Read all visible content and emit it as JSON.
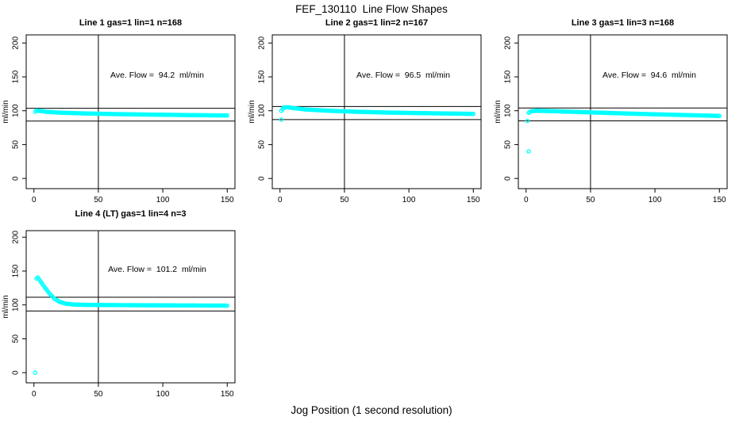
{
  "chart_data": {
    "type": "scatter",
    "title": "FEF_130110  Line Flow Shapes",
    "xlabel": "Jog Position (1 second resolution)",
    "ylabel": "ml/min",
    "xlim": [
      0,
      150
    ],
    "ylim": [
      0,
      200
    ],
    "xticks": [
      0,
      50,
      100,
      150
    ],
    "yticks": [
      0,
      50,
      100,
      150,
      200
    ],
    "grid": false,
    "legend": "none",
    "marker": "open-circle",
    "marker_color": "#00ffff",
    "line_color": "#000000",
    "vline_x": 50,
    "panels": [
      {
        "title": "Line 1 gas=1 lin=1 n=168",
        "n": 168,
        "ave_flow": 94.2,
        "ave_flow_label": "Ave. Flow =  94.2  ml/min",
        "hlines": [
          103.6,
          84.8
        ],
        "band": [
          [
            1,
            98.5
          ],
          [
            2,
            100.3
          ],
          [
            5,
            99.6
          ],
          [
            10,
            98.4
          ],
          [
            20,
            97.2
          ],
          [
            40,
            96.0
          ],
          [
            60,
            95.2
          ],
          [
            80,
            94.6
          ],
          [
            100,
            94.1
          ],
          [
            120,
            93.6
          ],
          [
            150,
            93.0
          ]
        ],
        "outliers": []
      },
      {
        "title": "Line 2 gas=1 lin=2 n=167",
        "n": 167,
        "ave_flow": 96.5,
        "ave_flow_label": "Ave. Flow =  96.5  ml/min",
        "hlines": [
          106.2,
          86.9
        ],
        "band": [
          [
            1,
            100.0
          ],
          [
            3,
            104.8
          ],
          [
            6,
            105.2
          ],
          [
            10,
            104.0
          ],
          [
            20,
            101.8
          ],
          [
            40,
            99.8
          ],
          [
            60,
            98.5
          ],
          [
            80,
            97.5
          ],
          [
            100,
            96.8
          ],
          [
            120,
            96.2
          ],
          [
            150,
            95.4
          ]
        ],
        "outliers": [
          [
            1,
            87
          ]
        ]
      },
      {
        "title": "Line 3 gas=1 lin=3 n=168",
        "n": 168,
        "ave_flow": 94.6,
        "ave_flow_label": "Ave. Flow =  94.6  ml/min",
        "hlines": [
          104.1,
          85.1
        ],
        "band": [
          [
            2,
            97.0
          ],
          [
            4,
            99.3
          ],
          [
            8,
            100.0
          ],
          [
            20,
            99.4
          ],
          [
            40,
            98.2
          ],
          [
            60,
            97.0
          ],
          [
            80,
            95.8
          ],
          [
            100,
            94.8
          ],
          [
            120,
            93.8
          ],
          [
            150,
            92.4
          ]
        ],
        "outliers": [
          [
            1,
            85
          ],
          [
            2,
            40
          ]
        ]
      },
      {
        "title": "Line 4 (LT) gas=1 lin=4 n=3",
        "n": 3,
        "ave_flow": 101.2,
        "ave_flow_label": "Ave. Flow =  101.2  ml/min",
        "hlines": [
          111.3,
          91.1
        ],
        "band": [
          [
            2,
            139.0
          ],
          [
            3,
            140.5
          ],
          [
            5,
            135.0
          ],
          [
            8,
            127.0
          ],
          [
            12,
            117.0
          ],
          [
            16,
            109.0
          ],
          [
            20,
            104.5
          ],
          [
            25,
            101.8
          ],
          [
            30,
            100.7
          ],
          [
            40,
            100.1
          ],
          [
            60,
            99.8
          ],
          [
            80,
            99.6
          ],
          [
            100,
            99.4
          ],
          [
            120,
            99.2
          ],
          [
            150,
            99.0
          ]
        ],
        "outliers": [
          [
            1,
            0
          ]
        ]
      }
    ]
  }
}
